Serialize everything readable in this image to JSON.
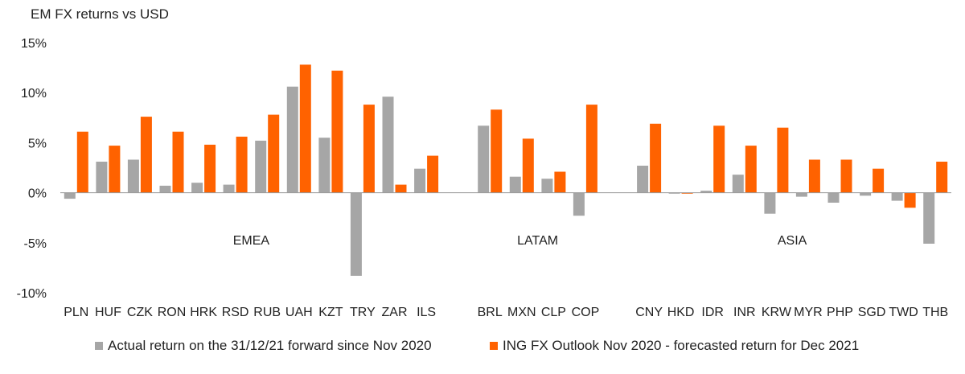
{
  "chart_data": {
    "type": "bar",
    "title": "EM FX returns vs USD",
    "ylim": [
      -10,
      15
    ],
    "yticks": [
      15,
      10,
      5,
      0,
      -5,
      -10
    ],
    "ytick_labels": [
      "15%",
      "10%",
      "5%",
      "0%",
      "-5%",
      "-10%"
    ],
    "categories": [
      "PLN",
      "HUF",
      "CZK",
      "RON",
      "HRK",
      "RSD",
      "RUB",
      "UAH",
      "KZT",
      "TRY",
      "ZAR",
      "ILS",
      "BRL",
      "MXN",
      "CLP",
      "COP",
      "CNY",
      "HKD",
      "IDR",
      "INR",
      "KRW",
      "MYR",
      "PHP",
      "SGD",
      "TWD",
      "THB"
    ],
    "groups": [
      {
        "label": "EMEA",
        "count": 12
      },
      {
        "label": "LATAM",
        "count": 4
      },
      {
        "label": "ASIA",
        "count": 10
      }
    ],
    "series": [
      {
        "name": "Actual return on the 31/12/21 forward since Nov 2020",
        "color": "#a6a6a6",
        "values": [
          -0.6,
          3.1,
          3.3,
          0.7,
          1.0,
          0.8,
          5.2,
          10.6,
          5.5,
          -8.3,
          9.6,
          2.4,
          6.7,
          1.6,
          1.4,
          -2.3,
          2.7,
          -0.1,
          0.2,
          1.8,
          -2.1,
          -0.4,
          -1.0,
          -0.3,
          -0.8,
          -5.1
        ]
      },
      {
        "name": "ING FX Outlook Nov 2020 - forecasted return for Dec 2021",
        "color": "#ff6200",
        "values": [
          6.1,
          4.7,
          7.6,
          6.1,
          4.8,
          5.6,
          7.8,
          12.8,
          12.2,
          8.8,
          0.8,
          3.7,
          8.3,
          5.4,
          2.1,
          8.8,
          6.9,
          -0.1,
          6.7,
          4.7,
          6.5,
          3.3,
          3.3,
          2.4,
          -1.5,
          3.1
        ]
      }
    ],
    "legend_position": "bottom",
    "grid": false
  }
}
